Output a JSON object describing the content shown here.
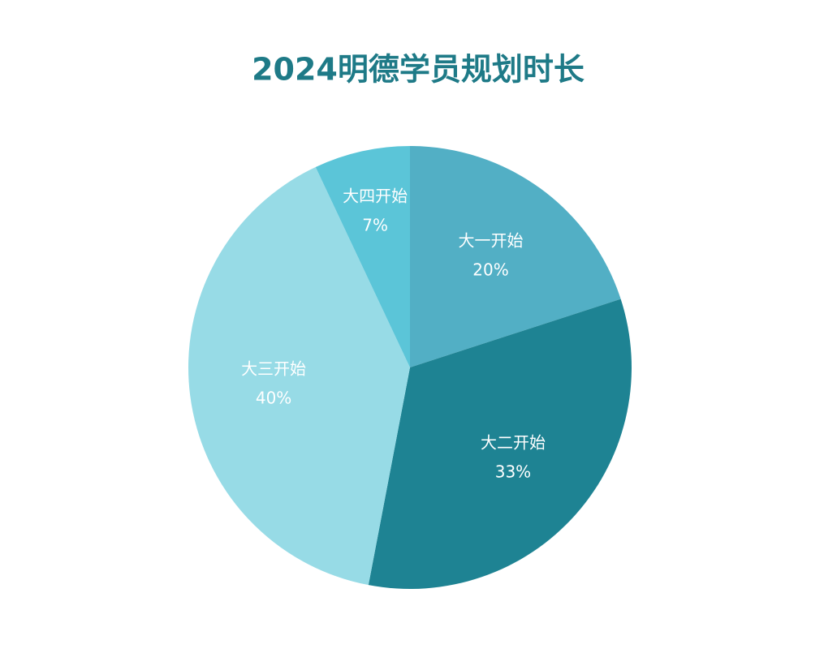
{
  "chart_data": {
    "type": "pie",
    "title": "2024明德学员规划时长",
    "categories": [
      "大一开始",
      "大二开始",
      "大三开始",
      "大四开始"
    ],
    "values": [
      20,
      33,
      40,
      7
    ],
    "value_labels": [
      "20%",
      "33%",
      "40%",
      "7%"
    ],
    "colors": [
      "#52afc5",
      "#1e8393",
      "#97dbe6",
      "#5bc5d8"
    ],
    "title_color": "#1e7a87"
  }
}
